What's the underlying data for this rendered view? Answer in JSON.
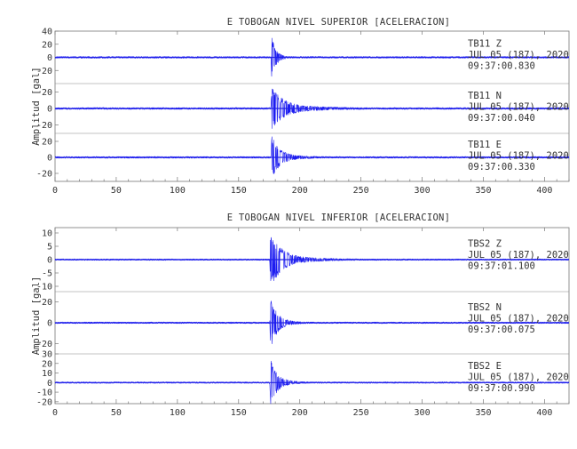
{
  "chart_data": [
    {
      "type": "line",
      "title": "E TOBOGAN NIVEL SUPERIOR [ACELERACION]",
      "ylabel": "Amplitud [gal]",
      "xlabel": "",
      "xlim": [
        0,
        420
      ],
      "x_ticks": [
        0,
        50,
        100,
        150,
        200,
        250,
        300,
        350,
        400
      ],
      "grid": false,
      "event_onset_s": 176.5,
      "series": [
        {
          "name": "TB11 Z",
          "station": "TB11",
          "component": "Z",
          "date": "JUL 05 (187), 2020",
          "time": "09:37:00.830",
          "ylim": [
            -40,
            40
          ],
          "y_ticks": [
            -20,
            0,
            20,
            40
          ],
          "peak_abs": 38,
          "noise": 1.2,
          "decay_s": 3.5,
          "coda_frac": 0.04
        },
        {
          "name": "TB11 N",
          "station": "TB11",
          "component": "N",
          "date": "JUL 05 (187), 2020",
          "time": "09:37:00.040",
          "ylim": [
            -30,
            30
          ],
          "y_ticks": [
            -20,
            0,
            20
          ],
          "peak_abs": 24,
          "noise": 1.0,
          "decay_s": 9,
          "coda_frac": 0.18
        },
        {
          "name": "TB11 E",
          "station": "TB11",
          "component": "E",
          "date": "JUL 05 (187), 2020",
          "time": "09:37:00.330",
          "ylim": [
            -30,
            30
          ],
          "y_ticks": [
            -20,
            0,
            20
          ],
          "peak_abs": 28,
          "noise": 1.0,
          "decay_s": 6,
          "coda_frac": 0.12
        }
      ]
    },
    {
      "type": "line",
      "title": "E TOBOGAN NIVEL INFERIOR [ACELERACION]",
      "ylabel": "Amplitud [gal]",
      "xlabel": "",
      "xlim": [
        0,
        420
      ],
      "x_ticks": [
        0,
        50,
        100,
        150,
        200,
        250,
        300,
        350,
        400
      ],
      "grid": false,
      "event_onset_s": 175.5,
      "series": [
        {
          "name": "TBS2 Z",
          "station": "TBS2",
          "component": "Z",
          "date": "JUL 05 (187), 2020",
          "time": "09:37:01.100",
          "ylim": [
            -12,
            12
          ],
          "y_ticks": [
            -10,
            -5,
            0,
            5,
            10
          ],
          "peak_abs": 11,
          "noise": 0.25,
          "decay_s": 8,
          "coda_frac": 0.12
        },
        {
          "name": "TBS2 N",
          "station": "TBS2",
          "component": "N",
          "date": "JUL 05 (187), 2020",
          "time": "09:37:00.075",
          "ylim": [
            -30,
            30
          ],
          "y_ticks": [
            -20,
            0,
            20
          ],
          "peak_abs": 29,
          "noise": 0.7,
          "decay_s": 5,
          "coda_frac": 0.07
        },
        {
          "name": "TBS2 E",
          "station": "TBS2",
          "component": "E",
          "date": "JUL 05 (187), 2020",
          "time": "09:37:00.990",
          "ylim": [
            -22,
            30
          ],
          "y_ticks": [
            -20,
            -10,
            0,
            10,
            20,
            30
          ],
          "peak_abs": 27,
          "noise": 0.7,
          "decay_s": 5,
          "coda_frac": 0.08
        }
      ]
    }
  ],
  "colors": {
    "trace": "#1c1cf0",
    "baseline": "#2a2ad8",
    "axis": "#777777",
    "text": "#333333"
  }
}
